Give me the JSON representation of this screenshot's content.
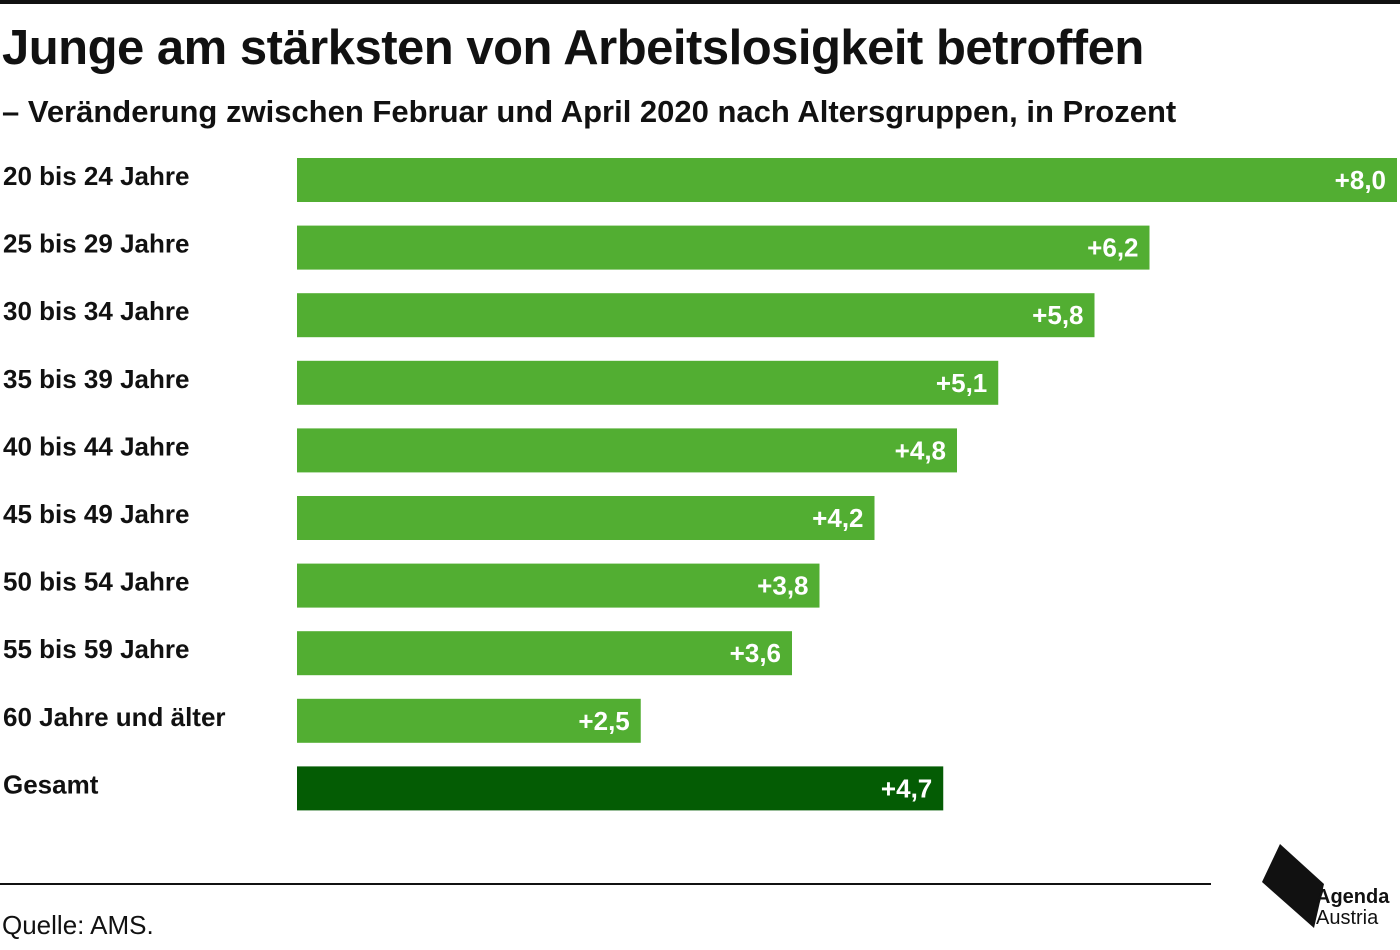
{
  "title": "Junge am stärksten von Arbeitslosigkeit betroffen",
  "subtitle": "– Veränderung zwischen Februar und April 2020 nach Altersgruppen, in Prozent",
  "source": "Quelle: AMS.",
  "logo": {
    "line1": "Agenda",
    "line2": "Austria"
  },
  "colors": {
    "bar": "#52ae32",
    "bar_highlight": "#045c04",
    "value_text": "#ffffff"
  },
  "chart_data": {
    "type": "bar",
    "orientation": "horizontal",
    "categories": [
      "20 bis 24 Jahre",
      "25 bis 29 Jahre",
      "30 bis 34 Jahre",
      "35 bis 39 Jahre",
      "40 bis 44 Jahre",
      "45 bis 49 Jahre",
      "50 bis 54 Jahre",
      "55 bis 59 Jahre",
      "60 Jahre und älter",
      "Gesamt"
    ],
    "values": [
      8.0,
      6.2,
      5.8,
      5.1,
      4.8,
      4.2,
      3.8,
      3.6,
      2.5,
      4.7
    ],
    "value_labels": [
      "+8,0",
      "+6,2",
      "+5,8",
      "+5,1",
      "+4,8",
      "+4,2",
      "+3,8",
      "+3,6",
      "+2,5",
      "+4,7"
    ],
    "highlight_category": "Gesamt",
    "xlim": [
      0,
      8.0
    ],
    "grid": false,
    "legend": false
  }
}
